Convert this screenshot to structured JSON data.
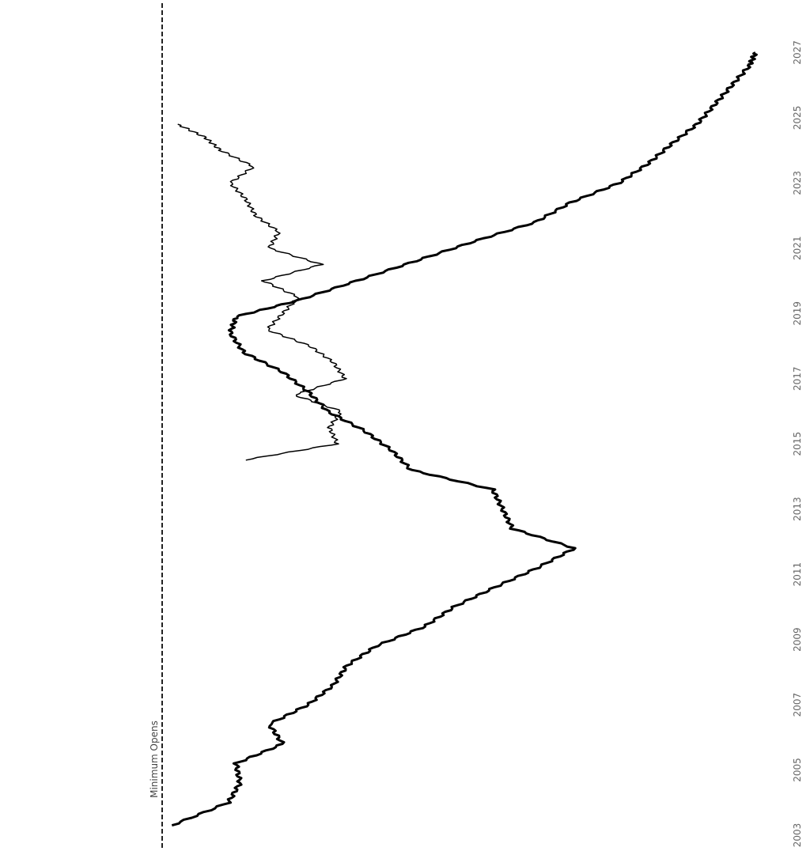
{
  "chart_data": {
    "type": "line",
    "orientation": "rotated-90-clockwise",
    "title": "",
    "xlabel": "",
    "ylabel": "",
    "grid": false,
    "legend": "none",
    "x_ticks": [
      2003,
      2005,
      2007,
      2009,
      2011,
      2013,
      2015,
      2017,
      2019,
      2021,
      2023,
      2025,
      2027
    ],
    "x_tick_labels": [
      "2003",
      "2005",
      "2007",
      "2009",
      "2011",
      "2013",
      "2015",
      "2017",
      "2019",
      "2021",
      "2023",
      "2025",
      "2027"
    ],
    "xlim": [
      2003,
      2027.3
    ],
    "series": [
      {
        "style": "thick",
        "color": "#000000",
        "x": [
          2003.3,
          2004.0,
          2004.6,
          2005.2,
          2005.8,
          2006.4,
          2007.0,
          2007.6,
          2008.2,
          2008.8,
          2009.4,
          2010.0,
          2010.6,
          2011.2,
          2011.8,
          2012.4,
          2013.0,
          2013.6,
          2014.2,
          2014.8,
          2015.4,
          2016.0,
          2016.6,
          2017.2,
          2017.8,
          2018.4,
          2018.9,
          2019.4,
          2020.0,
          2020.6,
          2021.2,
          2021.8,
          2022.4,
          2023.0,
          2023.6,
          2024.2,
          2024.8,
          2025.4,
          2026.0,
          2026.6,
          2027.0
        ],
        "y": [
          5,
          34,
          40,
          38,
          62,
          55,
          75,
          88,
          95,
          110,
          135,
          150,
          171,
          193,
          212,
          180,
          175,
          170,
          128,
          118,
          104,
          85,
          75,
          62,
          42,
          35,
          38,
          70,
          100,
          130,
          160,
          192,
          210,
          235,
          250,
          262,
          275,
          284,
          293,
          302,
          305
        ]
      },
      {
        "style": "thin",
        "color": "#000000",
        "x": [
          2014.5,
          2015.0,
          2015.5,
          2016.0,
          2016.5,
          2017.0,
          2017.5,
          2018.0,
          2018.5,
          2019.0,
          2019.5,
          2020.0,
          2020.5,
          2021.0,
          2021.5,
          2022.0,
          2022.5,
          2023.0,
          2023.5,
          2024.0,
          2024.4,
          2024.8
        ],
        "y": [
          42,
          90,
          86,
          92,
          68,
          94,
          88,
          76,
          54,
          62,
          70,
          52,
          82,
          55,
          60,
          48,
          43,
          35,
          47,
          30,
          22,
          8
        ]
      }
    ],
    "reference_line": {
      "value": 0,
      "style": "dashed",
      "label": "Minimum Opens"
    }
  }
}
